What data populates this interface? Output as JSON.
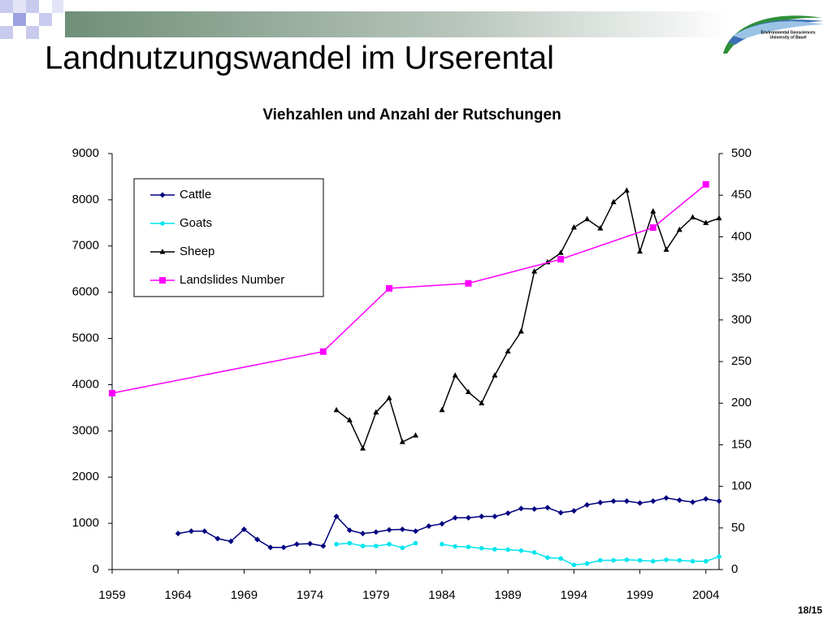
{
  "slide_title": "Landnutzungswandel im Urserental",
  "logo": {
    "line1": "Environmental Geosciences",
    "line2": "University of Basel"
  },
  "page_number": "18/15",
  "chart_data": {
    "type": "line",
    "title": "Viehzahlen und Anzahl der Rutschungen",
    "xlim": [
      1959,
      2005
    ],
    "xticks": [
      1959,
      1964,
      1969,
      1974,
      1979,
      1984,
      1989,
      1994,
      1999,
      2004
    ],
    "ylim": [
      0,
      9000
    ],
    "yticks": [
      0,
      1000,
      2000,
      3000,
      4000,
      5000,
      6000,
      7000,
      8000,
      9000
    ],
    "y2lim": [
      0,
      500
    ],
    "y2ticks": [
      0,
      50,
      100,
      150,
      200,
      250,
      300,
      350,
      400,
      450,
      500
    ],
    "grid": false,
    "legend": "upper left",
    "series": [
      {
        "name": "Cattle",
        "color": "#000080",
        "marker": "diamond",
        "x": [
          1964,
          1965,
          1966,
          1967,
          1968,
          1969,
          1970,
          1971,
          1972,
          1973,
          1974,
          1975,
          1976,
          1977,
          1978,
          1979,
          1980,
          1981,
          1982,
          1983,
          1984,
          1985,
          1986,
          1987,
          1988,
          1989,
          1990,
          1991,
          1992,
          1993,
          1994,
          1995,
          1996,
          1997,
          1998,
          1999,
          2000,
          2001,
          2002,
          2003,
          2004,
          2005
        ],
        "values": [
          780,
          830,
          830,
          670,
          610,
          870,
          650,
          480,
          480,
          550,
          560,
          510,
          1150,
          850,
          780,
          810,
          860,
          870,
          830,
          940,
          990,
          1120,
          1120,
          1150,
          1150,
          1220,
          1320,
          1310,
          1340,
          1230,
          1270,
          1400,
          1450,
          1480,
          1480,
          1440,
          1480,
          1550,
          1500,
          1460,
          1530,
          1480
        ]
      },
      {
        "name": "Goats",
        "color": "#00e5ee",
        "marker": "circle",
        "x": [
          1976,
          1977,
          1978,
          1979,
          1980,
          1981,
          1982,
          1983,
          1984,
          1985,
          1986,
          1987,
          1988,
          1989,
          1990,
          1991,
          1992,
          1993,
          1994,
          1995,
          1996,
          1997,
          1998,
          1999,
          2000,
          2001,
          2002,
          2003,
          2004,
          2005
        ],
        "values": [
          550,
          570,
          510,
          510,
          550,
          470,
          570,
          null,
          550,
          500,
          490,
          460,
          440,
          430,
          410,
          370,
          260,
          240,
          100,
          130,
          200,
          200,
          210,
          200,
          180,
          210,
          200,
          180,
          180,
          280
        ]
      },
      {
        "name": "Sheep",
        "color": "#000000",
        "marker": "triangle",
        "x": [
          1976,
          1977,
          1978,
          1979,
          1980,
          1981,
          1982,
          1983,
          1984,
          1985,
          1986,
          1987,
          1988,
          1989,
          1990,
          1991,
          1992,
          1993,
          1994,
          1995,
          1996,
          1997,
          1998,
          1999,
          2000,
          2001,
          2002,
          2003,
          2004,
          2005
        ],
        "values": [
          3450,
          3230,
          2620,
          3400,
          3710,
          2760,
          2900,
          null,
          3450,
          4200,
          3840,
          3600,
          4200,
          4720,
          5150,
          6450,
          6650,
          6850,
          7400,
          7580,
          7380,
          7950,
          8200,
          6880,
          7750,
          6920,
          7350,
          7620,
          7500,
          7600
        ]
      },
      {
        "name": "Landslides Number",
        "color": "#ff00ff",
        "marker": "square",
        "axis": "y2",
        "x": [
          1959,
          1975,
          1980,
          1986,
          1993,
          2000,
          2004
        ],
        "values": [
          212,
          262,
          338,
          344,
          373,
          411,
          463
        ]
      }
    ]
  }
}
